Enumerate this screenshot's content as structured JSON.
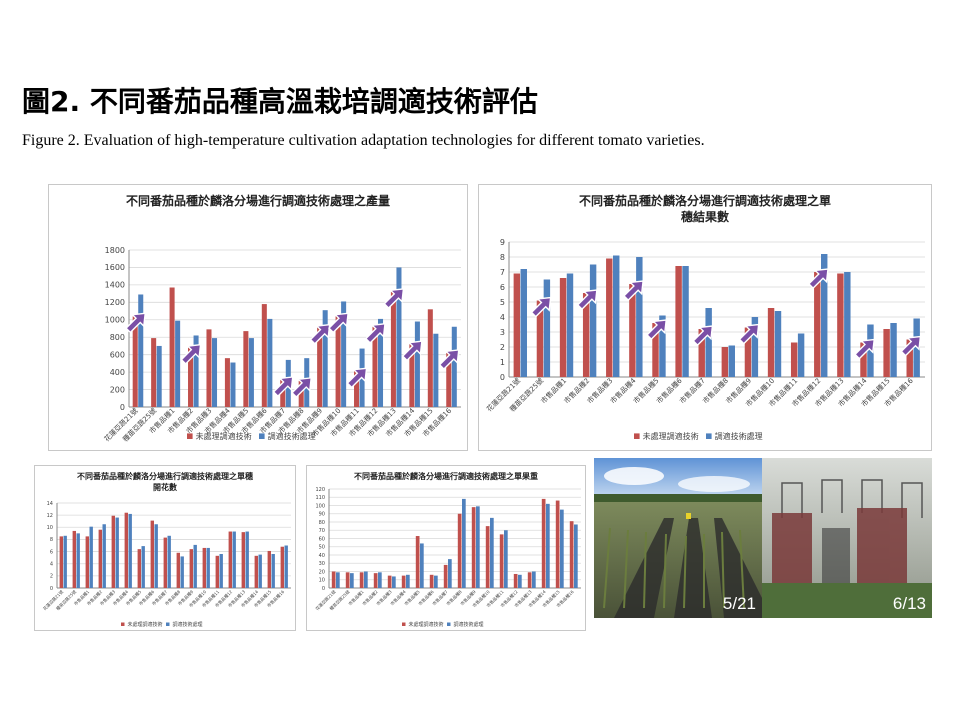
{
  "page": {
    "title": "圖2. 不同番茄品種高溫栽培調適技術評估",
    "subtitle": "Figure 2. Evaluation of high-temperature cultivation adaptation technologies for different tomato varieties."
  },
  "colors": {
    "series_red": "#c0504d",
    "series_blue": "#4f81bd",
    "arrow": "#7a4fa6"
  },
  "legend": {
    "red": "未處理調適技術",
    "blue": "調適技術處理"
  },
  "chart_data": [
    {
      "type": "bar",
      "title": "不同番茄品種於麟洛分場進行調適技術處理之產量",
      "categories": [
        "花蓮亞蔬21號",
        "種苗亞蔬25號",
        "市售品種1",
        "市售品種2",
        "市售品種3",
        "市售品種4",
        "市售品種5",
        "市售品種6",
        "市售品種7",
        "市售品種8",
        "市售品種9",
        "市售品種10",
        "市售品種11",
        "市售品種12",
        "市售品種13",
        "市售品種14",
        "市售品種15",
        "市售品種16"
      ],
      "series": [
        {
          "name": "未處理調適技術",
          "values": [
            1040,
            790,
            1370,
            680,
            890,
            560,
            870,
            1180,
            310,
            300,
            910,
            1040,
            410,
            920,
            1320,
            720,
            1120,
            620
          ]
        },
        {
          "name": "調適技術處理",
          "values": [
            1290,
            700,
            990,
            820,
            790,
            510,
            790,
            1010,
            540,
            560,
            1110,
            1210,
            670,
            1010,
            1600,
            980,
            840,
            920
          ]
        }
      ],
      "ylim": [
        0,
        1800
      ],
      "yticks": [
        0,
        200,
        400,
        600,
        800,
        1000,
        1200,
        1400,
        1600,
        1800
      ],
      "arrows": [
        0,
        3,
        8,
        9,
        10,
        11,
        12,
        13,
        14,
        15,
        17
      ],
      "grid": true,
      "legend_position": "bottom"
    },
    {
      "type": "bar",
      "title": "不同番茄品種於麟洛分場進行調適技術處理之單穗結果數",
      "categories": [
        "花蓮亞蔬21號",
        "種苗亞蔬25號",
        "市售品種1",
        "市售品種2",
        "市售品種3",
        "市售品種4",
        "市售品種5",
        "市售品種6",
        "市售品種7",
        "市售品種8",
        "市售品種9",
        "市售品種10",
        "市售品種11",
        "市售品種12",
        "市售品種13",
        "市售品種14",
        "市售品種15",
        "市售品種16"
      ],
      "series": [
        {
          "name": "未處理調適技術",
          "values": [
            6.9,
            5.1,
            6.6,
            5.6,
            7.9,
            6.2,
            3.6,
            7.4,
            3.2,
            2.0,
            3.3,
            4.6,
            2.3,
            7.0,
            6.9,
            2.3,
            3.2,
            2.5
          ]
        },
        {
          "name": "調適技術處理",
          "values": [
            7.2,
            6.5,
            6.9,
            7.5,
            8.1,
            8.0,
            4.1,
            7.4,
            4.6,
            2.1,
            4.0,
            4.4,
            2.9,
            8.2,
            7.0,
            3.5,
            3.6,
            3.9
          ]
        }
      ],
      "ylim": [
        0,
        9
      ],
      "yticks": [
        0,
        1,
        2,
        3,
        4,
        5,
        6,
        7,
        8,
        9
      ],
      "arrows": [
        1,
        3,
        5,
        6,
        8,
        10,
        13,
        15,
        17
      ],
      "grid": true,
      "legend_position": "bottom"
    },
    {
      "type": "bar",
      "title": "不同番茄品種於麟洛分場進行調適技術處理之單穗開花數",
      "categories": [
        "花蓮亞蔬21號",
        "種苗亞蔬25號",
        "市售品種1",
        "市售品種2",
        "市售品種3",
        "市售品種4",
        "市售品種5",
        "市售品種6",
        "市售品種7",
        "市售品種8",
        "市售品種9",
        "市售品種10",
        "市售品種11",
        "市售品種12",
        "市售品種13",
        "市售品種14",
        "市售品種15",
        "市售品種16"
      ],
      "series": [
        {
          "name": "未處理調適技術",
          "values": [
            8.5,
            9.4,
            8.5,
            9.6,
            11.9,
            12.4,
            6.4,
            11.1,
            8.3,
            5.8,
            6.4,
            6.6,
            5.3,
            9.3,
            9.2,
            5.3,
            6.1,
            6.8
          ]
        },
        {
          "name": "調適技術處理",
          "values": [
            8.6,
            9.0,
            10.1,
            10.5,
            11.6,
            12.2,
            6.9,
            10.5,
            8.6,
            5.2,
            7.1,
            6.6,
            5.6,
            9.3,
            9.3,
            5.5,
            5.6,
            7.0
          ]
        }
      ],
      "ylim": [
        0,
        14
      ],
      "yticks": [
        0,
        2,
        4,
        6,
        8,
        10,
        12,
        14
      ],
      "grid": true,
      "legend_position": "bottom"
    },
    {
      "type": "bar",
      "title": "不同番茄品種於麟洛分場進行調適技術處理之單果重",
      "categories": [
        "花蓮亞蔬21號",
        "種苗亞蔬25號",
        "市售品種1",
        "市售品種2",
        "市售品種3",
        "市售品種4",
        "市售品種5",
        "市售品種6",
        "市售品種7",
        "市售品種8",
        "市售品種9",
        "市售品種10",
        "市售品種11",
        "市售品種12",
        "市售品種13",
        "市售品種14",
        "市售品種15",
        "市售品種16"
      ],
      "series": [
        {
          "name": "未處理調適技術",
          "values": [
            20,
            19,
            19,
            18,
            15,
            15,
            63,
            16,
            28,
            90,
            98,
            75,
            65,
            17,
            19,
            108,
            106,
            81
          ]
        },
        {
          "name": "調適技術處理",
          "values": [
            19,
            18,
            20,
            19,
            14,
            16,
            54,
            15,
            35,
            108,
            99,
            85,
            70,
            16,
            20,
            102,
            95,
            77
          ]
        }
      ],
      "ylim": [
        0,
        120
      ],
      "yticks": [
        0,
        10,
        20,
        30,
        40,
        50,
        60,
        70,
        80,
        90,
        100,
        110,
        120
      ],
      "grid": true,
      "legend_position": "bottom"
    }
  ],
  "photos": [
    {
      "label": "5/21"
    },
    {
      "label": "6/13"
    }
  ]
}
